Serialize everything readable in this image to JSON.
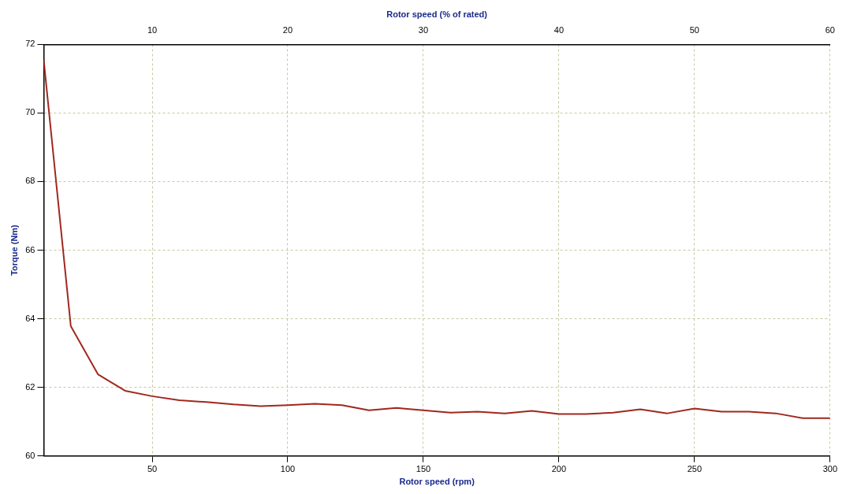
{
  "chart_data": {
    "type": "line",
    "xlabel": "Rotor speed (rpm)",
    "x2label": "Rotor speed (% of rated)",
    "ylabel": "Torque (Nm)",
    "x": [
      10,
      20,
      30,
      40,
      50,
      60,
      70,
      80,
      90,
      100,
      110,
      120,
      130,
      140,
      150,
      160,
      170,
      180,
      190,
      200,
      210,
      220,
      230,
      240,
      250,
      260,
      270,
      280,
      290,
      300
    ],
    "series": [
      {
        "color": "#a0281e",
        "values": [
          71.55,
          63.78,
          62.38,
          61.9,
          61.74,
          61.62,
          61.57,
          61.5,
          61.45,
          61.48,
          61.52,
          61.48,
          61.33,
          61.4,
          61.33,
          61.26,
          61.29,
          61.24,
          61.31,
          61.22,
          61.22,
          61.26,
          61.36,
          61.24,
          61.38,
          61.29,
          61.29,
          61.24,
          61.1,
          61.1
        ]
      }
    ],
    "xlim": [
      10,
      300
    ],
    "xticks": [
      50,
      100,
      150,
      200,
      250,
      300
    ],
    "x2lim": [
      2,
      60
    ],
    "x2ticks": [
      10,
      20,
      30,
      40,
      50,
      60
    ],
    "ylim": [
      60,
      72
    ],
    "yticks": [
      60,
      62,
      64,
      66,
      68,
      70,
      72
    ],
    "grid": true,
    "line_style": "solid",
    "marker": "none",
    "legend": false
  }
}
